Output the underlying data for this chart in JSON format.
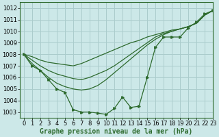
{
  "title": "Graphe pression niveau de la mer (hPa)",
  "bg_color": "#cce8e8",
  "grid_color": "#aacccc",
  "line_color": "#2d6a2d",
  "xlim": [
    -0.5,
    23
  ],
  "ylim": [
    1002.5,
    1012.5
  ],
  "yticks": [
    1003,
    1004,
    1005,
    1006,
    1007,
    1008,
    1009,
    1010,
    1011,
    1012
  ],
  "xticks": [
    0,
    1,
    2,
    3,
    4,
    5,
    6,
    7,
    8,
    9,
    10,
    11,
    12,
    13,
    14,
    15,
    16,
    17,
    18,
    19,
    20,
    21,
    22,
    23
  ],
  "main_series": [
    1008.0,
    1007.0,
    1006.6,
    1005.8,
    1005.0,
    1004.7,
    1003.2,
    1003.0,
    1003.0,
    1002.9,
    1002.8,
    1003.3,
    1004.3,
    1003.4,
    1003.5,
    1006.0,
    1008.6,
    1009.5,
    1009.5,
    1009.5,
    1010.3,
    1010.8,
    1011.5,
    1011.8
  ],
  "smooth_line1": [
    1008.0,
    1007.8,
    1007.5,
    1007.3,
    1007.2,
    1007.1,
    1007.0,
    1007.2,
    1007.5,
    1007.8,
    1008.1,
    1008.4,
    1008.7,
    1009.0,
    1009.2,
    1009.5,
    1009.7,
    1009.9,
    1010.1,
    1010.2,
    1010.4,
    1010.7,
    1011.4,
    1011.8
  ],
  "smooth_line2": [
    1008.0,
    1007.5,
    1007.0,
    1006.6,
    1006.3,
    1006.1,
    1005.9,
    1005.8,
    1006.0,
    1006.3,
    1006.6,
    1007.0,
    1007.5,
    1008.0,
    1008.5,
    1009.0,
    1009.5,
    1009.8,
    1010.0,
    1010.2,
    1010.4,
    1010.7,
    1011.4,
    1011.8
  ],
  "smooth_line3": [
    1008.0,
    1007.2,
    1006.6,
    1006.0,
    1005.5,
    1005.2,
    1005.0,
    1004.9,
    1005.0,
    1005.3,
    1005.8,
    1006.4,
    1007.0,
    1007.6,
    1008.2,
    1008.8,
    1009.3,
    1009.7,
    1010.0,
    1010.2,
    1010.4,
    1010.7,
    1011.4,
    1011.8
  ],
  "label_fontsize": 7.0,
  "tick_fontsize": 6.0
}
